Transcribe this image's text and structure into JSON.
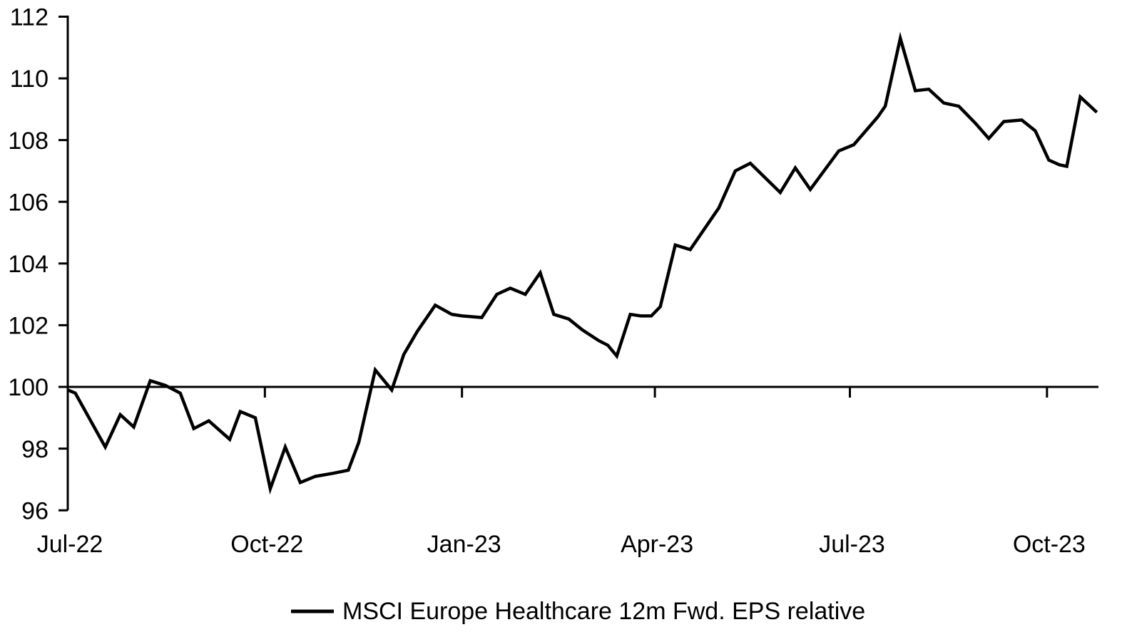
{
  "chart_data": {
    "type": "line",
    "title": "",
    "background": "#ffffff",
    "axis_color": "#000000",
    "grid": false,
    "baseline_value": 100,
    "ylim": [
      96,
      112
    ],
    "y_ticks": [
      96,
      98,
      100,
      102,
      104,
      106,
      108,
      110,
      112
    ],
    "x_unit": "weeks since Jul-2022",
    "x_ticks": [
      {
        "label": "Jul-22",
        "week": 0
      },
      {
        "label": "Oct-22",
        "week": 13.14
      },
      {
        "label": "Jan-23",
        "week": 26.28
      },
      {
        "label": "Apr-23",
        "week": 39.14
      },
      {
        "label": "Jul-23",
        "week": 52.14
      },
      {
        "label": "Oct-23",
        "week": 65.28
      }
    ],
    "legend_position": "bottom-center",
    "series": [
      {
        "name": "MSCI Europe Healthcare 12m Fwd. EPS relative",
        "color": "#000000",
        "points": [
          [
            0.0,
            99.9
          ],
          [
            0.5,
            99.8
          ],
          [
            2.5,
            98.05
          ],
          [
            3.5,
            99.1
          ],
          [
            4.4,
            98.7
          ],
          [
            5.5,
            100.2
          ],
          [
            6.5,
            100.05
          ],
          [
            7.5,
            99.8
          ],
          [
            8.4,
            98.65
          ],
          [
            9.4,
            98.9
          ],
          [
            10.8,
            98.3
          ],
          [
            11.5,
            99.2
          ],
          [
            12.5,
            99.0
          ],
          [
            13.5,
            96.7
          ],
          [
            14.5,
            98.05
          ],
          [
            15.5,
            96.9
          ],
          [
            16.5,
            97.1
          ],
          [
            17.7,
            97.2
          ],
          [
            18.7,
            97.3
          ],
          [
            19.4,
            98.2
          ],
          [
            20.5,
            100.55
          ],
          [
            21.6,
            99.9
          ],
          [
            22.4,
            101.05
          ],
          [
            23.3,
            101.8
          ],
          [
            24.5,
            102.65
          ],
          [
            25.6,
            102.35
          ],
          [
            26.3,
            102.3
          ],
          [
            27.6,
            102.25
          ],
          [
            28.6,
            103.0
          ],
          [
            29.5,
            103.2
          ],
          [
            30.5,
            103.0
          ],
          [
            31.5,
            103.7
          ],
          [
            32.4,
            102.35
          ],
          [
            33.4,
            102.2
          ],
          [
            34.3,
            101.85
          ],
          [
            35.4,
            101.5
          ],
          [
            36.0,
            101.35
          ],
          [
            36.6,
            101.0
          ],
          [
            37.5,
            102.35
          ],
          [
            38.2,
            102.3
          ],
          [
            38.9,
            102.3
          ],
          [
            39.5,
            102.6
          ],
          [
            40.5,
            104.6
          ],
          [
            41.5,
            104.45
          ],
          [
            43.4,
            105.8
          ],
          [
            44.5,
            107.0
          ],
          [
            45.5,
            107.25
          ],
          [
            47.5,
            106.3
          ],
          [
            48.5,
            107.1
          ],
          [
            49.5,
            106.4
          ],
          [
            51.4,
            107.65
          ],
          [
            52.4,
            107.85
          ],
          [
            54.0,
            108.75
          ],
          [
            54.5,
            109.1
          ],
          [
            55.5,
            111.3
          ],
          [
            56.5,
            109.6
          ],
          [
            57.4,
            109.65
          ],
          [
            58.4,
            109.2
          ],
          [
            59.4,
            109.1
          ],
          [
            60.5,
            108.55
          ],
          [
            61.4,
            108.05
          ],
          [
            62.4,
            108.6
          ],
          [
            63.6,
            108.65
          ],
          [
            64.5,
            108.3
          ],
          [
            65.4,
            107.35
          ],
          [
            66.1,
            107.2
          ],
          [
            66.6,
            107.15
          ],
          [
            67.5,
            109.4
          ],
          [
            68.6,
            108.9
          ]
        ]
      }
    ]
  }
}
